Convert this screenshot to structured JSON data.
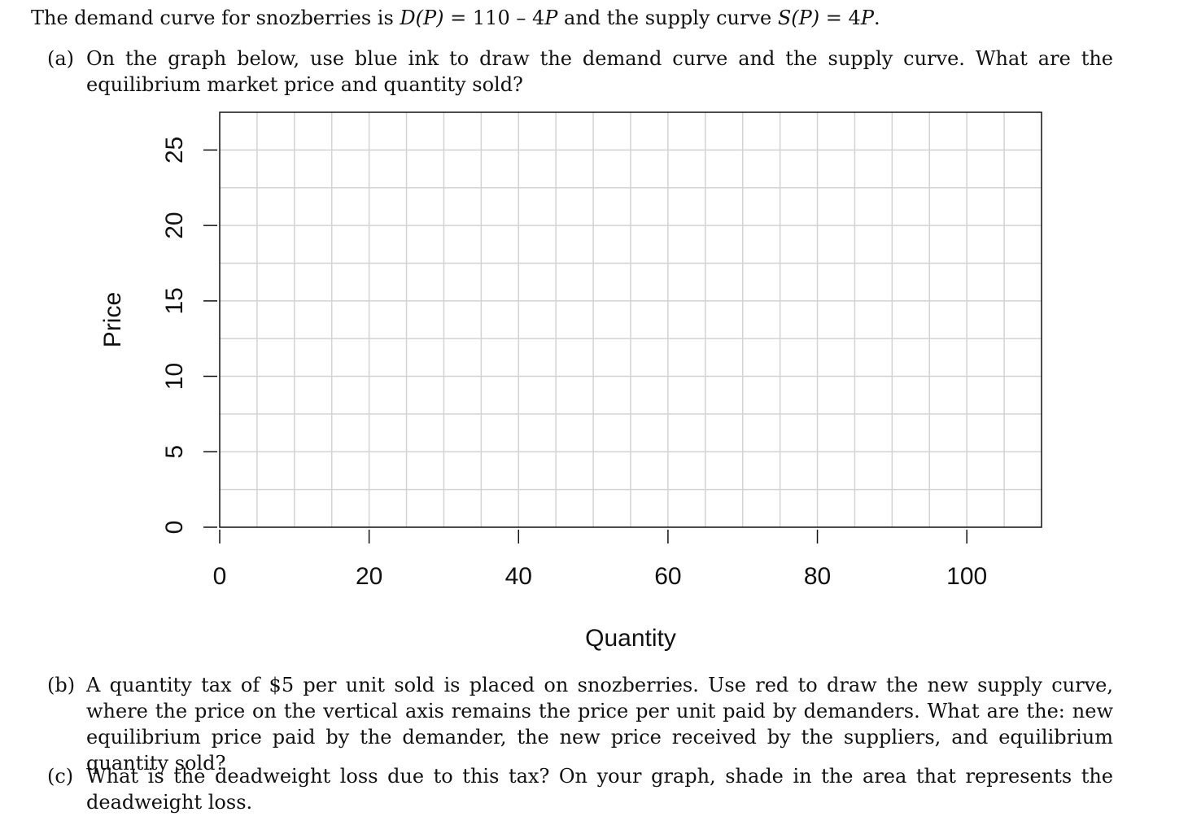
{
  "problem": {
    "intro": {
      "text_1": "The demand curve for snozberries is ",
      "demand_fn": "D(P)",
      "demand_expr_a": " = 110 – 4",
      "demand_var": "P",
      "text_2": " and the supply curve ",
      "supply_fn": "S(P)",
      "supply_expr_a": " = 4",
      "supply_var": "P",
      "text_3": "."
    },
    "parts": [
      {
        "label": "(a)",
        "text": "On the graph below, use blue ink to draw the demand curve and the supply curve. What are the equilibrium market price and quantity sold?"
      },
      {
        "label": "(b)",
        "text": "A quantity tax of $5 per unit sold is placed on snozberries. Use red to draw the new supply curve, where the price on the vertical axis remains the price per unit paid by demanders. What are the: new equilibrium price paid by the demander, the new price received by the suppliers, and equilibrium quantity sold?"
      },
      {
        "label": "(c)",
        "text": "What is the deadweight loss due to this tax? On your graph, shade in the area that represents the deadweight loss."
      }
    ]
  },
  "chart_data": {
    "type": "line",
    "series": [],
    "xlabel": "Quantity",
    "ylabel": "Price",
    "xlim": [
      0,
      110
    ],
    "ylim": [
      0,
      27.5
    ],
    "x_ticks": [
      "0",
      "20",
      "40",
      "60",
      "80",
      "100"
    ],
    "y_ticks": [
      "0",
      "5",
      "10",
      "15",
      "20",
      "25"
    ],
    "grid": true,
    "grid_color": "#d3d3d3",
    "frame_color": "#000000"
  }
}
